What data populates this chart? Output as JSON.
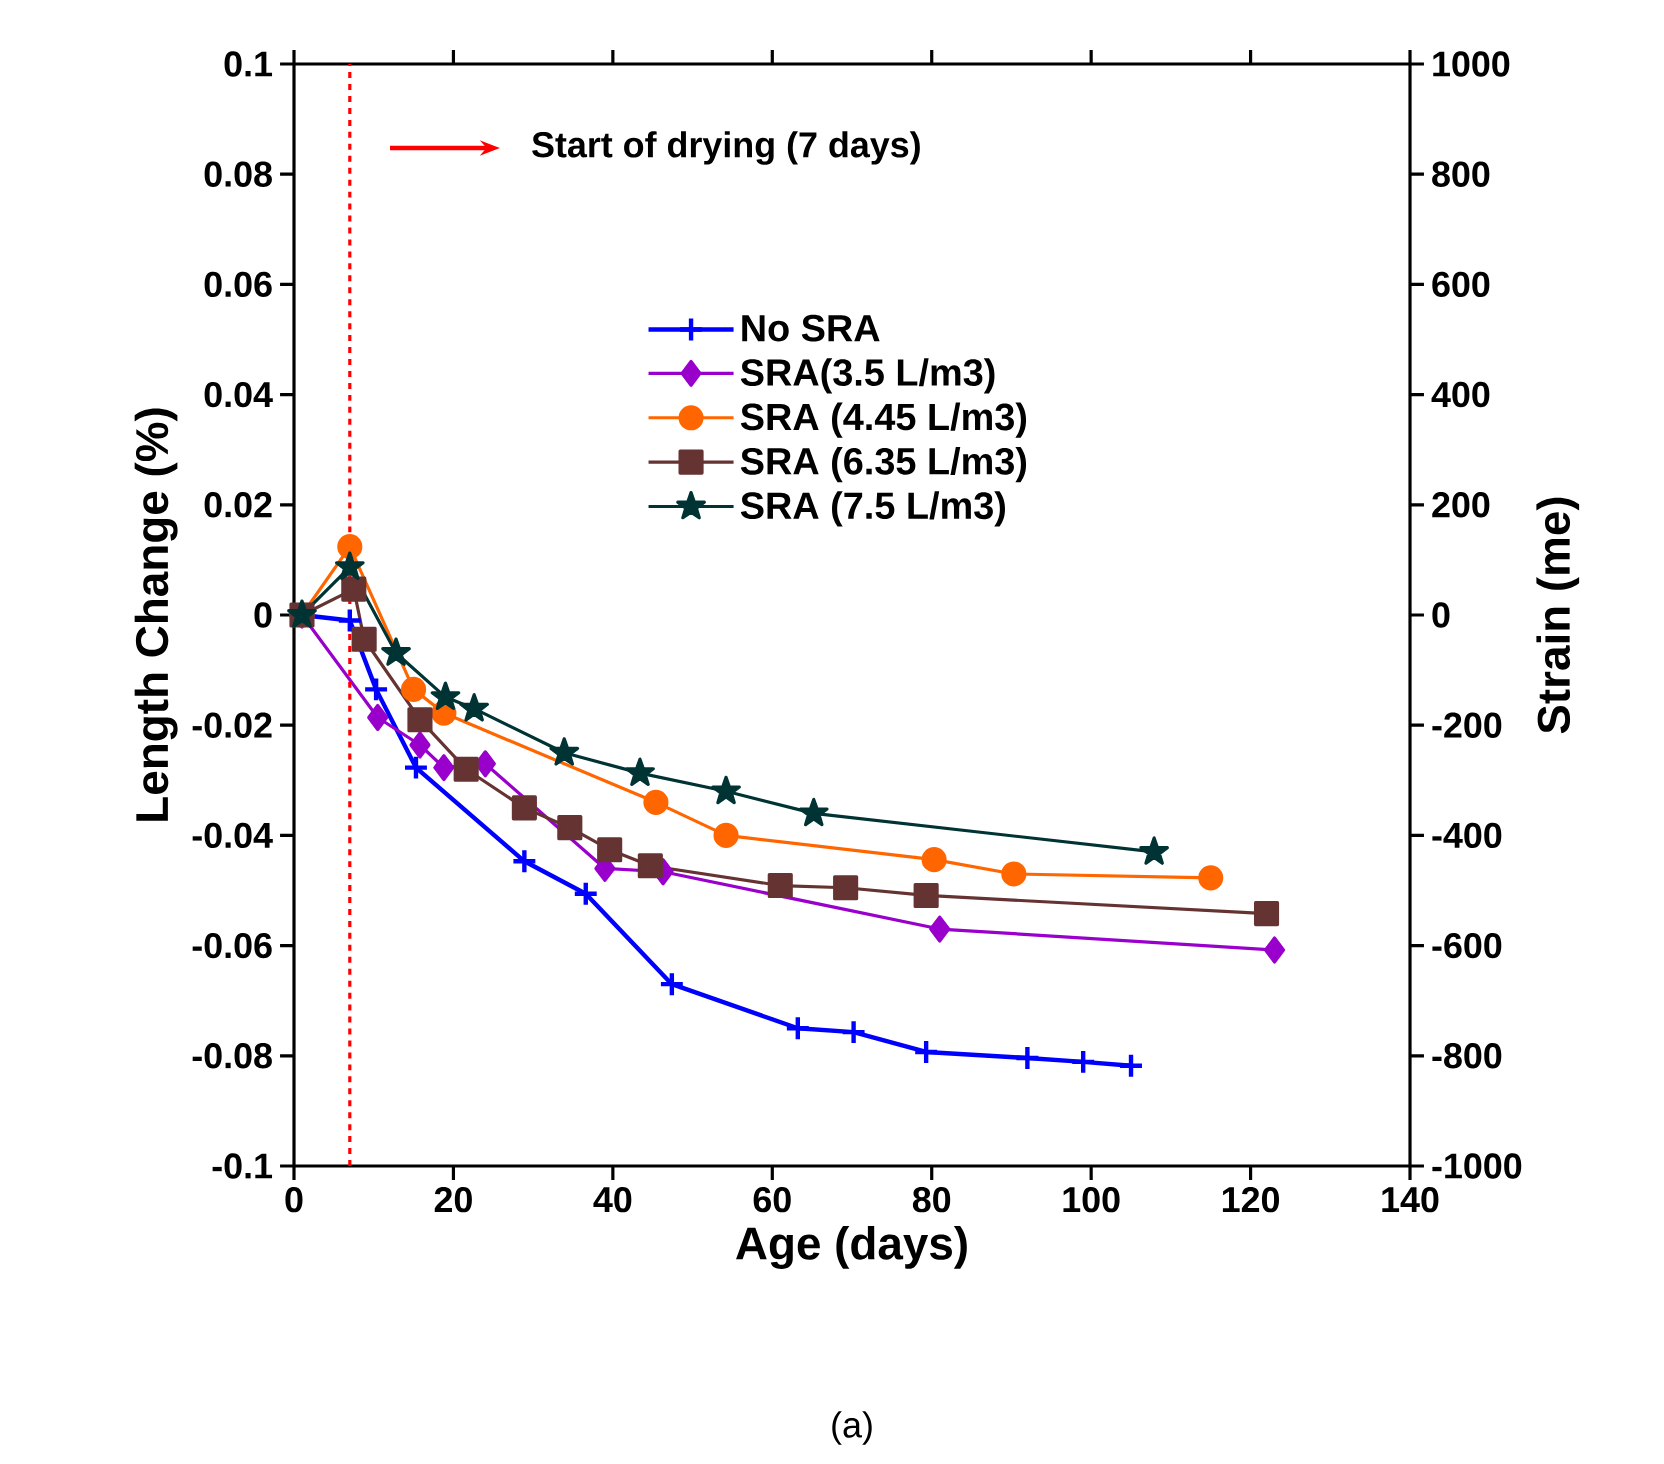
{
  "chart_data": {
    "type": "line",
    "xlabel": "Age (days)",
    "ylabel": "Length Change (%)",
    "y2label": "Strain (me)",
    "annotations": [
      "Start of drying (7 days)",
      "(a)"
    ],
    "xlim": [
      0,
      140
    ],
    "xticks": [
      0,
      20,
      40,
      60,
      80,
      100,
      120,
      140
    ],
    "ylim": [
      -0.1,
      0.1
    ],
    "yticks": [
      -0.1,
      -0.08,
      -0.06,
      -0.04,
      -0.02,
      0,
      0.02,
      0.04,
      0.06,
      0.08,
      0.1
    ],
    "y2lim": [
      -1000,
      1000
    ],
    "y2ticks": [
      -1000,
      -800,
      -600,
      -400,
      -200,
      0,
      200,
      400,
      600,
      800,
      1000
    ],
    "legend": "right",
    "line_style": "solid",
    "ref_lines": [
      {
        "axis": "x",
        "value": 7,
        "color": "#ff0000",
        "line_style": "dashed"
      }
    ],
    "series": [
      {
        "name": "No SRA",
        "color": "#0000ff",
        "marker": "cross",
        "x": [
          1,
          7,
          10.3,
          15.3,
          28.9,
          36.6,
          47.4,
          63.2,
          70.2,
          79.3,
          92,
          99,
          105
        ],
        "values": [
          0,
          -0.001,
          -0.0135,
          -0.0277,
          -0.0447,
          -0.0506,
          -0.067,
          -0.075,
          -0.0757,
          -0.0793,
          -0.0804,
          -0.0811,
          -0.0818
        ]
      },
      {
        "name": "SRA(3.5 L/m3)",
        "color": "#9900cc",
        "marker": "diamond",
        "x": [
          1,
          7,
          10.5,
          15.8,
          18.8,
          24,
          39,
          46.3,
          81,
          123
        ],
        "values": [
          0,
          null,
          -0.0186,
          -0.0236,
          -0.0277,
          -0.027,
          -0.046,
          -0.0466,
          -0.057,
          -0.0608
        ]
      },
      {
        "name": "SRA (4.45 L/m3)",
        "color": "#ff6600",
        "marker": "circle",
        "x": [
          1,
          7,
          15,
          18.8,
          45.4,
          54.2,
          80.3,
          90.3,
          115
        ],
        "values": [
          0,
          0.0124,
          -0.0135,
          -0.0178,
          -0.034,
          -0.04,
          -0.0444,
          -0.047,
          -0.0477
        ]
      },
      {
        "name": "SRA (6.35 L/m3)",
        "color": "#663333",
        "marker": "square",
        "x": [
          1,
          7.5,
          8.8,
          15.8,
          21.6,
          28.9,
          34.6,
          39.6,
          44.7,
          61,
          69.2,
          79.3,
          122
        ],
        "values": [
          0,
          0.0047,
          -0.0044,
          -0.019,
          -0.028,
          -0.035,
          -0.0386,
          -0.0426,
          -0.0455,
          -0.0491,
          -0.0495,
          -0.0509,
          -0.0542
        ]
      },
      {
        "name": "SRA (7.5 L/m3)",
        "color": "#003333",
        "marker": "star",
        "x": [
          1,
          7,
          12.8,
          19,
          22.6,
          33.9,
          43.4,
          54.2,
          65.2,
          107.9
        ],
        "values": [
          0,
          0.0087,
          -0.0069,
          -0.0149,
          -0.017,
          -0.025,
          -0.0287,
          -0.032,
          -0.036,
          -0.043
        ]
      }
    ]
  }
}
